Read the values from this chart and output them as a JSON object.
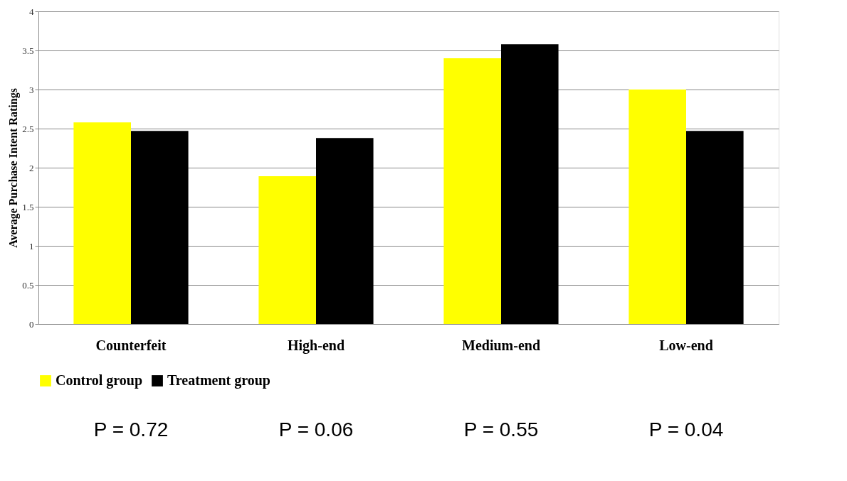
{
  "chart_data": {
    "type": "bar",
    "ylabel": "Average Purchase Intent Ratings",
    "categories": [
      "Counterfeit",
      "High-end",
      "Medium-end",
      "Low-end"
    ],
    "series": [
      {
        "name": "Control group",
        "color": "#ffff00",
        "values": [
          2.58,
          1.89,
          3.4,
          3.0
        ]
      },
      {
        "name": "Treatment group",
        "color": "#000000",
        "values": [
          2.47,
          2.38,
          3.58,
          2.47
        ]
      }
    ],
    "ylim": [
      0,
      4
    ],
    "yticks": [
      0,
      0.5,
      1,
      1.5,
      2,
      2.5,
      3,
      3.5,
      4
    ],
    "grid": "y",
    "legend": "bottom",
    "annotations": [
      "P = 0.72",
      "P = 0.06",
      "P = 0.55",
      "P = 0.04"
    ]
  }
}
